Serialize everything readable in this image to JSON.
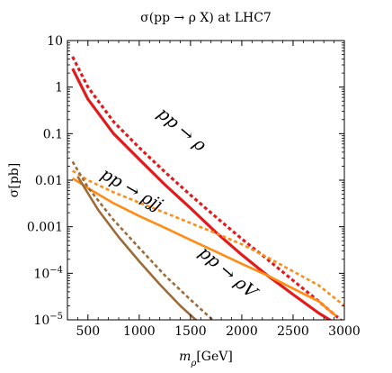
{
  "chart_data": {
    "type": "line",
    "title": "σ(pp → ρ X) at LHC7",
    "xlabel": "m_ρ[GeV]",
    "xlabel_parts": {
      "main": "m",
      "sub": "ρ",
      "unit": "[GeV]"
    },
    "ylabel": "σ[pb]",
    "xlim": [
      300,
      3000
    ],
    "ylim": [
      1e-05,
      10
    ],
    "yscale": "log",
    "grid": false,
    "x_ticks": [
      500,
      1000,
      1500,
      2000,
      2500,
      3000
    ],
    "x_tick_labels": [
      "500",
      "1000",
      "1500",
      "2000",
      "2500",
      "3000"
    ],
    "y_ticks": [
      10,
      1,
      0.1,
      0.01,
      0.001,
      0.0001,
      1e-05
    ],
    "y_tick_labels": [
      {
        "base": "10",
        "exp": ""
      },
      {
        "base": "1",
        "exp": ""
      },
      {
        "base": "0.1",
        "exp": ""
      },
      {
        "base": "0.01",
        "exp": ""
      },
      {
        "base": "0.001",
        "exp": ""
      },
      {
        "base": "10",
        "exp": "−4"
      },
      {
        "base": "10",
        "exp": "−5"
      }
    ],
    "annotations": [
      {
        "text": "pp → ρ",
        "x": 1380,
        "y": 0.1,
        "angle": 40
      },
      {
        "text": "pp → ρjj",
        "x": 900,
        "y": 0.005,
        "angle": 30
      },
      {
        "text": "pp → ρV",
        "x": 1830,
        "y": 8.5e-05,
        "angle": 40
      }
    ],
    "series": [
      {
        "color": "#e31a1c",
        "dash": "solid",
        "width": 3.2,
        "x": [
          350,
          500,
          750,
          1000,
          1250,
          1500,
          1750,
          2000,
          2250,
          2500,
          2750,
          2950
        ],
        "y": [
          2.5,
          0.55,
          0.1,
          0.028,
          0.008,
          0.0025,
          0.00075,
          0.00025,
          9e-05,
          3.5e-05,
          1.4e-05,
          7.5e-06
        ]
      },
      {
        "color": "#e31a1c",
        "dash": "dashed",
        "width": 3.2,
        "x": [
          350,
          500,
          750,
          1000,
          1250,
          1500,
          1750,
          2000,
          2250,
          2500,
          2750,
          3000
        ],
        "y": [
          4.5,
          1.0,
          0.18,
          0.05,
          0.015,
          0.0048,
          0.0016,
          0.00055,
          0.0002,
          7e-05,
          2.5e-05,
          8.5e-06
        ]
      },
      {
        "color": "#ff8c14",
        "dash": "solid",
        "width": 2.6,
        "x": [
          350,
          500,
          750,
          1000,
          1250,
          1500,
          1750,
          2000,
          2250,
          2500,
          2750,
          2920
        ],
        "y": [
          0.011,
          0.0068,
          0.0032,
          0.0017,
          0.00095,
          0.00052,
          0.00029,
          0.00016,
          9e-05,
          4.7e-05,
          2.5e-05,
          1.2e-05
        ]
      },
      {
        "color": "#ff8c14",
        "dash": "dashed",
        "width": 2.6,
        "x": [
          350,
          500,
          750,
          1000,
          1250,
          1500,
          1750,
          2000,
          2250,
          2500,
          2750,
          3000
        ],
        "y": [
          0.016,
          0.01,
          0.0055,
          0.0033,
          0.002,
          0.0012,
          0.00072,
          0.00042,
          0.00022,
          0.00011,
          5.5e-05,
          2e-05
        ]
      },
      {
        "color": "#9c6b38",
        "dash": "solid",
        "width": 2.6,
        "x": [
          400,
          600,
          800,
          1000,
          1200,
          1400,
          1600
        ],
        "y": [
          0.012,
          0.0023,
          0.0006,
          0.00018,
          5.8e-05,
          2e-05,
          8e-06
        ]
      },
      {
        "color": "#9c6b38",
        "dash": "dashed",
        "width": 2.6,
        "x": [
          350,
          500,
          750,
          1000,
          1250,
          1500,
          1750
        ],
        "y": [
          0.025,
          0.007,
          0.0014,
          0.00035,
          9e-05,
          2.7e-05,
          8.5e-06
        ]
      }
    ]
  }
}
